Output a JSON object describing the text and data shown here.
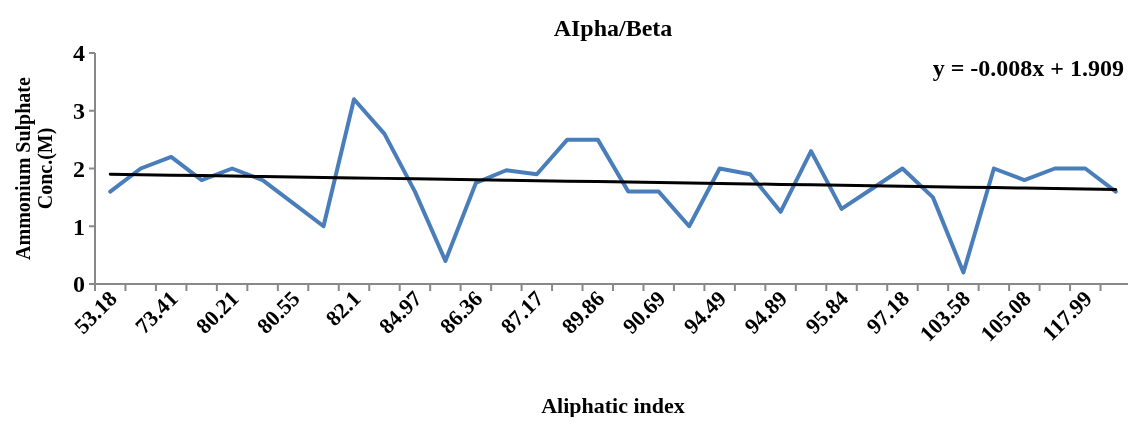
{
  "chart_data": {
    "type": "line",
    "title": "AIpha/Beta",
    "xlabel": "Aliphatic index",
    "ylabel": "Ammonium Sulphate Conc.(M)",
    "categories": [
      "53.18",
      null,
      "73.41",
      null,
      "80.21",
      null,
      "80.55",
      null,
      "82.1",
      null,
      "84.97",
      null,
      "86.36",
      null,
      "87.17",
      null,
      "89.86",
      null,
      "90.69",
      null,
      "94.49",
      null,
      "94.89",
      null,
      "95.84",
      null,
      "97.18",
      null,
      "103.58",
      null,
      "105.08",
      null,
      "117.99",
      null
    ],
    "series": [
      {
        "color": "#4a7ebb",
        "values": [
          1.6,
          2.0,
          2.2,
          1.8,
          2.0,
          1.8,
          1.4,
          1.0,
          3.2,
          2.6,
          1.6,
          0.4,
          1.75,
          1.97,
          1.9,
          2.5,
          2.5,
          1.6,
          1.6,
          1.0,
          2.0,
          1.9,
          1.25,
          2.3,
          1.3,
          1.65,
          2.0,
          1.5,
          0.2,
          2.0,
          1.8,
          2.0,
          2.0,
          1.6
        ]
      },
      {
        "type": "line",
        "color": "#000000",
        "values": [
          1.901,
          1.893,
          1.885,
          1.877,
          1.869,
          1.861,
          1.853,
          1.845,
          1.837,
          1.829,
          1.821,
          1.813,
          1.805,
          1.797,
          1.789,
          1.781,
          1.773,
          1.765,
          1.757,
          1.749,
          1.741,
          1.733,
          1.725,
          1.717,
          1.709,
          1.701,
          1.693,
          1.685,
          1.677,
          1.669,
          1.661,
          1.653,
          1.645,
          1.637
        ]
      }
    ],
    "ylim": [
      0,
      4
    ],
    "yticks": [
      0,
      1,
      2,
      3,
      4
    ],
    "annotations": [
      "y = -0.008x + 1.909"
    ]
  }
}
